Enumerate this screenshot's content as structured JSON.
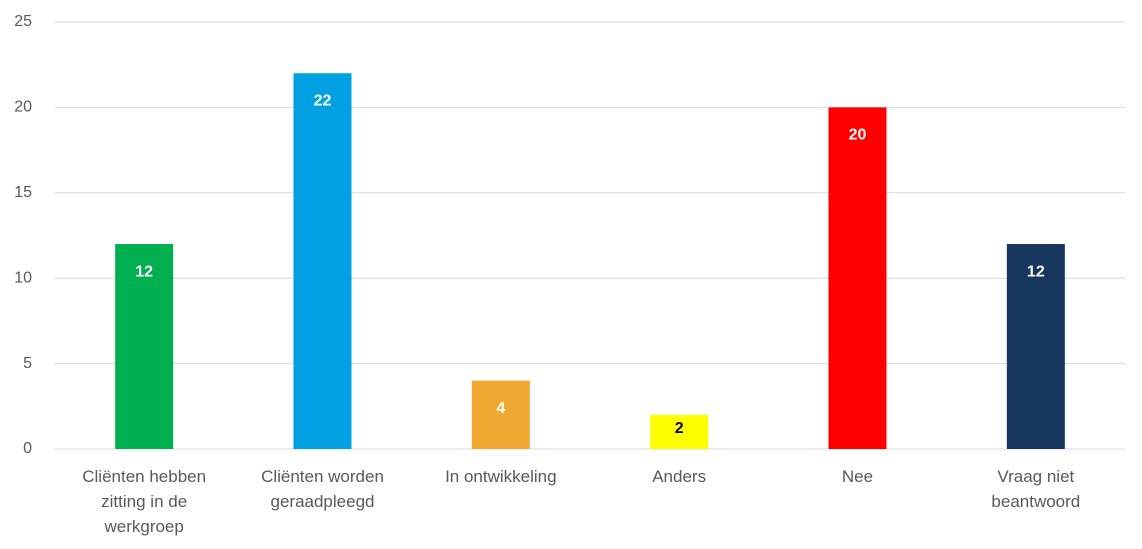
{
  "chart_data": {
    "type": "bar",
    "categories": [
      "Cliënten hebben zitting in de werkgroep",
      "Cliënten worden geraadpleegd",
      "In ontwikkeling",
      "Anders",
      "Nee",
      "Vraag niet beantwoord"
    ],
    "values": [
      12,
      22,
      4,
      2,
      20,
      12
    ],
    "colors": [
      "#00b050",
      "#00a0e3",
      "#f0a830",
      "#ffff00",
      "#ff0000",
      "#17375e"
    ],
    "label_colors": [
      "#ffffff",
      "#ffffff",
      "#ffffff",
      "#000000",
      "#ffffff",
      "#ffffff"
    ],
    "ylim": [
      0,
      25
    ],
    "yticks": [
      0,
      5,
      10,
      15,
      20,
      25
    ],
    "grid": true
  }
}
